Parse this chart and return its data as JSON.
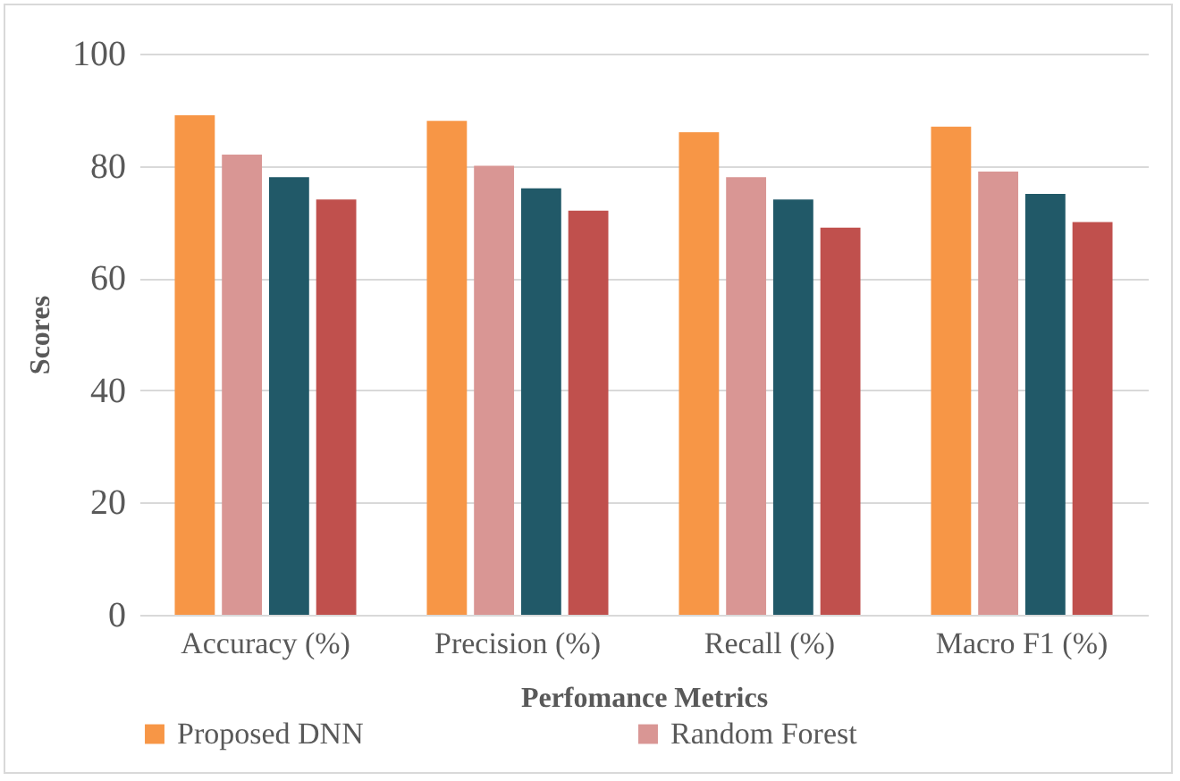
{
  "chart_data": {
    "type": "bar",
    "xlabel": "Perfomance Metrics",
    "ylabel": "Scores",
    "categories": [
      "Accuracy (%)",
      "Precision (%)",
      "Recall (%)",
      "Macro F1 (%)"
    ],
    "series": [
      {
        "name": "Proposed DNN",
        "color": "#f79646",
        "values": [
          89,
          88,
          86,
          87
        ]
      },
      {
        "name": "Random Forest",
        "color": "#d99694",
        "values": [
          82,
          80,
          78,
          79
        ]
      },
      {
        "color": "#215968",
        "values": [
          78,
          76,
          74,
          75
        ]
      },
      {
        "color": "#c0504d",
        "values": [
          74,
          72,
          69,
          70
        ]
      }
    ],
    "ylim": [
      0,
      100
    ],
    "yticks": [
      0,
      20,
      40,
      60,
      80,
      100
    ],
    "grid": "y",
    "legend": "bottom"
  }
}
